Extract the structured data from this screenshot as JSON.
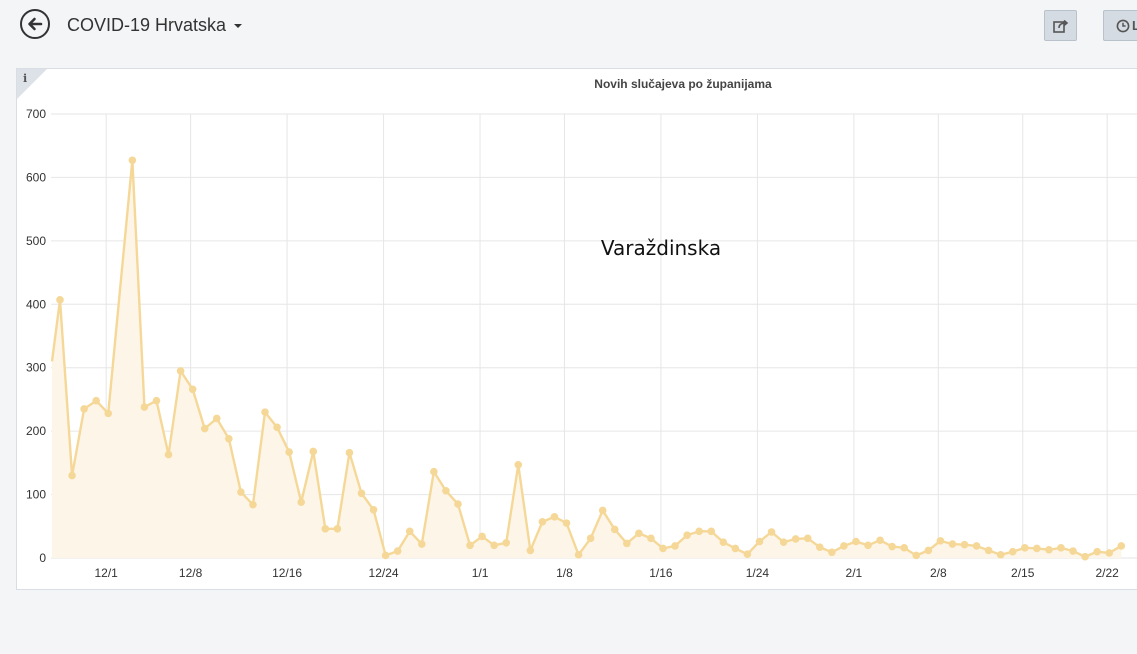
{
  "header": {
    "title": "COVID-19 Hrvatska",
    "back_icon": "arrow-left-circle-icon",
    "share_icon": "share-icon",
    "history_icon": "clock-icon",
    "history_label": "L"
  },
  "info_icon_label": "i",
  "chart_data": {
    "type": "line",
    "title": "Novih slučajeva po županijama",
    "overlay_label": "Varaždinska",
    "xlabel": "",
    "ylabel": "",
    "ylim": [
      0,
      700
    ],
    "yticks": [
      0,
      100,
      200,
      300,
      400,
      500,
      600,
      700
    ],
    "grid": true,
    "color": "#f5d898",
    "fill_color": "#fdf6e8",
    "x_start": "11/27",
    "x_step_days": 1,
    "xtick_labels": [
      {
        "label": "12/1",
        "day_index": 3
      },
      {
        "label": "12/8",
        "day_index": 10
      },
      {
        "label": "12/16",
        "day_index": 18
      },
      {
        "label": "12/24",
        "day_index": 26
      },
      {
        "label": "1/1",
        "day_index": 34
      },
      {
        "label": "1/8",
        "day_index": 41
      },
      {
        "label": "1/16",
        "day_index": 49
      },
      {
        "label": "1/24",
        "day_index": 57
      },
      {
        "label": "2/1",
        "day_index": 65
      },
      {
        "label": "2/8",
        "day_index": 72
      },
      {
        "label": "2/15",
        "day_index": 79
      },
      {
        "label": "2/22",
        "day_index": 86
      }
    ],
    "series": [
      {
        "values": [
          407,
          130,
          235,
          248,
          228,
          null,
          627,
          238,
          248,
          163,
          295,
          266,
          204,
          220,
          188,
          104,
          84,
          230,
          206,
          167,
          88,
          168,
          46,
          46,
          166,
          102,
          76,
          4,
          11,
          42,
          22,
          136,
          106,
          85,
          20,
          34,
          20,
          24,
          147,
          12,
          57,
          65,
          55,
          5,
          31,
          75,
          45,
          23,
          39,
          31,
          15,
          19,
          36,
          42,
          42,
          25,
          15,
          6,
          26,
          41,
          25,
          30,
          31,
          17,
          9,
          19,
          26,
          20,
          28,
          18,
          16,
          4,
          12,
          27,
          22,
          21,
          19,
          12,
          5,
          10,
          16,
          15,
          13,
          16,
          11,
          2,
          10,
          8,
          19
        ]
      }
    ]
  }
}
